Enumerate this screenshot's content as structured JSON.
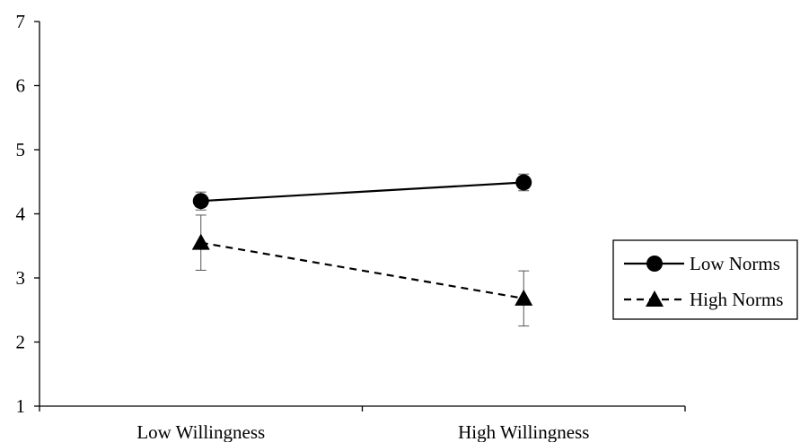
{
  "chart_data": {
    "type": "line",
    "title": "",
    "xlabel": "",
    "ylabel": "",
    "categories": [
      "Low Willingness",
      "High Willingness"
    ],
    "ylim": [
      1,
      7
    ],
    "yticks": [
      1,
      2,
      3,
      4,
      5,
      6,
      7
    ],
    "grid": false,
    "legend_position": "right",
    "series": [
      {
        "name": "Low Norms",
        "values": [
          4.2,
          4.49
        ],
        "error": [
          0.14,
          0.13
        ],
        "marker": "circle",
        "line": "solid",
        "color": "#000000"
      },
      {
        "name": "High Norms",
        "values": [
          3.55,
          2.68
        ],
        "error": [
          0.43,
          0.43
        ],
        "marker": "triangle",
        "line": "dashed",
        "color": "#000000"
      }
    ]
  }
}
